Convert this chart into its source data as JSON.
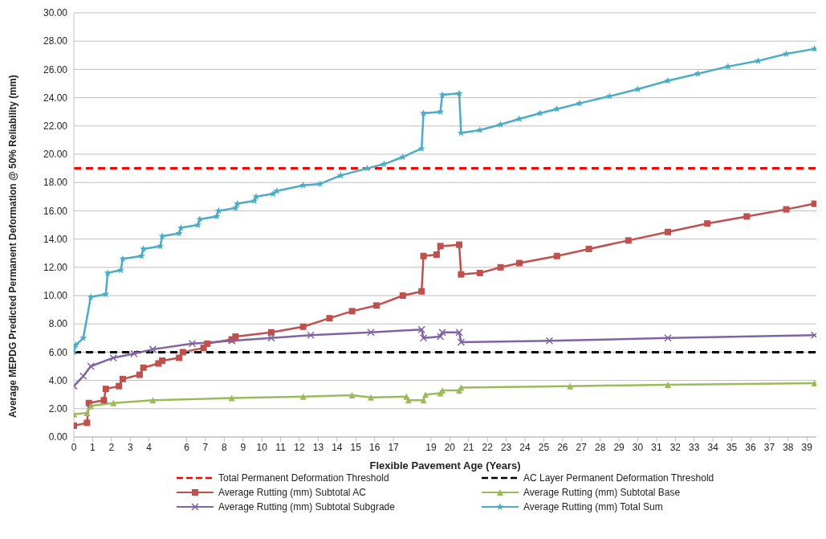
{
  "chart_data": {
    "type": "line",
    "xlabel": "Flexible Pavement Age (Years)",
    "ylabel": "Average MEPDG Predicted Permanent Deformation @ 50% Reliability  (mm)",
    "xlim": [
      0,
      39.5
    ],
    "xticks": [
      0,
      1,
      2,
      3,
      4,
      6,
      7,
      8,
      9,
      10,
      11,
      12,
      13,
      14,
      15,
      16,
      17,
      19,
      20,
      21,
      22,
      23,
      24,
      25,
      26,
      27,
      28,
      29,
      30,
      31,
      32,
      33,
      34,
      35,
      36,
      37,
      38,
      39
    ],
    "ylim": [
      0,
      30
    ],
    "yticks": [
      {
        "value": 0,
        "label": "0.00"
      },
      {
        "value": 2,
        "label": "2.00"
      },
      {
        "value": 4,
        "label": "4.00"
      },
      {
        "value": 6,
        "label": "6.00"
      },
      {
        "value": 8,
        "label": "8.00"
      },
      {
        "value": 10,
        "label": "10.00"
      },
      {
        "value": 12,
        "label": "12.00"
      },
      {
        "value": 14,
        "label": "14.00"
      },
      {
        "value": 16,
        "label": "16.00"
      },
      {
        "value": 18,
        "label": "18.00"
      },
      {
        "value": 20,
        "label": "20.00"
      },
      {
        "value": 22,
        "label": "22.00"
      },
      {
        "value": 24,
        "label": "24.00"
      },
      {
        "value": 26,
        "label": "26.00"
      },
      {
        "value": 28,
        "label": "28.00"
      },
      {
        "value": 30,
        "label": "30.00"
      }
    ],
    "grid": "y",
    "legend": "bottom",
    "ref_lines": [
      {
        "axis": "y",
        "value": 19.0,
        "label": "Total Permanent Deformation Threshold",
        "color": "#ff0000",
        "line_style": "dashed"
      },
      {
        "axis": "y",
        "value": 6.0,
        "label": "AC Layer Permanent Deformation Threshold",
        "color": "#000000",
        "line_style": "dashed"
      }
    ],
    "series": [
      {
        "name": "Average Rutting (mm) Subtotal AC",
        "color": "#c0504d",
        "marker": "square",
        "x": [
          0,
          0.7,
          0.8,
          1.6,
          1.7,
          2.4,
          2.6,
          3.5,
          3.7,
          4.5,
          4.7,
          5.6,
          5.8,
          6.9,
          7.1,
          8.4,
          8.6,
          10.5,
          12.2,
          13.6,
          14.8,
          16.1,
          17.5,
          18.5,
          18.6,
          19.3,
          19.5,
          20.5,
          20.6,
          21.6,
          22.7,
          23.7,
          25.7,
          27.4,
          29.5,
          31.6,
          33.7,
          35.8,
          37.9,
          39.4
        ],
        "values": [
          0.8,
          1.0,
          2.4,
          2.6,
          3.4,
          3.6,
          4.1,
          4.4,
          4.9,
          5.2,
          5.4,
          5.6,
          6.0,
          6.3,
          6.6,
          6.9,
          7.1,
          7.4,
          7.8,
          8.4,
          8.9,
          9.3,
          10.0,
          10.3,
          12.8,
          12.9,
          13.5,
          13.6,
          11.5,
          11.6,
          12.0,
          12.3,
          12.8,
          13.3,
          13.9,
          14.5,
          15.1,
          15.6,
          16.1,
          16.5
        ]
      },
      {
        "name": "Average Rutting (mm) Subtotal Base",
        "color": "#9bbb59",
        "marker": "triangle",
        "x": [
          0,
          0.7,
          0.9,
          2.1,
          4.2,
          8.4,
          12.2,
          14.8,
          15.8,
          17.7,
          17.8,
          18.6,
          18.7,
          19.5,
          19.6,
          20.5,
          20.6,
          26.4,
          31.6,
          39.4
        ],
        "values": [
          1.6,
          1.7,
          2.2,
          2.4,
          2.6,
          2.75,
          2.85,
          2.95,
          2.8,
          2.85,
          2.6,
          2.6,
          3.0,
          3.1,
          3.3,
          3.3,
          3.5,
          3.6,
          3.7,
          3.8
        ]
      },
      {
        "name": "Average Rutting (mm) Subtotal Subgrade",
        "color": "#8064a2",
        "marker": "cross",
        "x": [
          0,
          0.5,
          0.9,
          2.1,
          3.2,
          4.2,
          6.3,
          8.4,
          10.5,
          12.6,
          15.8,
          18.5,
          18.6,
          19.5,
          19.6,
          20.5,
          20.6,
          25.3,
          31.6,
          39.4
        ],
        "values": [
          3.6,
          4.3,
          5.0,
          5.6,
          5.9,
          6.2,
          6.6,
          6.8,
          7.0,
          7.2,
          7.4,
          7.6,
          7.0,
          7.1,
          7.4,
          7.4,
          6.7,
          6.8,
          7.0,
          7.2
        ]
      },
      {
        "name": "Average Rutting (mm) Total Sum",
        "color": "#4bacc6",
        "marker": "star",
        "x": [
          0,
          0.1,
          0.5,
          0.9,
          1.7,
          1.8,
          2.5,
          2.6,
          3.6,
          3.7,
          4.6,
          4.7,
          5.6,
          5.7,
          6.6,
          6.7,
          7.6,
          7.7,
          8.6,
          8.7,
          9.6,
          9.7,
          10.6,
          10.8,
          12.2,
          13.1,
          14.2,
          15.6,
          16.5,
          17.5,
          18.5,
          18.6,
          19.5,
          19.6,
          20.5,
          20.6,
          21.6,
          22.7,
          23.7,
          24.8,
          25.7,
          26.9,
          28.5,
          30.0,
          31.6,
          33.2,
          34.8,
          36.4,
          37.9,
          39.4
        ],
        "values": [
          6.0,
          6.5,
          7.0,
          9.9,
          10.1,
          11.6,
          11.8,
          12.6,
          12.8,
          13.3,
          13.5,
          14.2,
          14.4,
          14.8,
          15.0,
          15.4,
          15.6,
          16.0,
          16.2,
          16.5,
          16.7,
          17.0,
          17.2,
          17.4,
          17.8,
          17.9,
          18.5,
          19.0,
          19.3,
          19.8,
          20.4,
          22.9,
          23.0,
          24.2,
          24.3,
          21.5,
          21.7,
          22.1,
          22.5,
          22.9,
          23.2,
          23.6,
          24.1,
          24.6,
          25.2,
          25.7,
          26.2,
          26.6,
          27.1,
          27.45
        ]
      }
    ]
  }
}
